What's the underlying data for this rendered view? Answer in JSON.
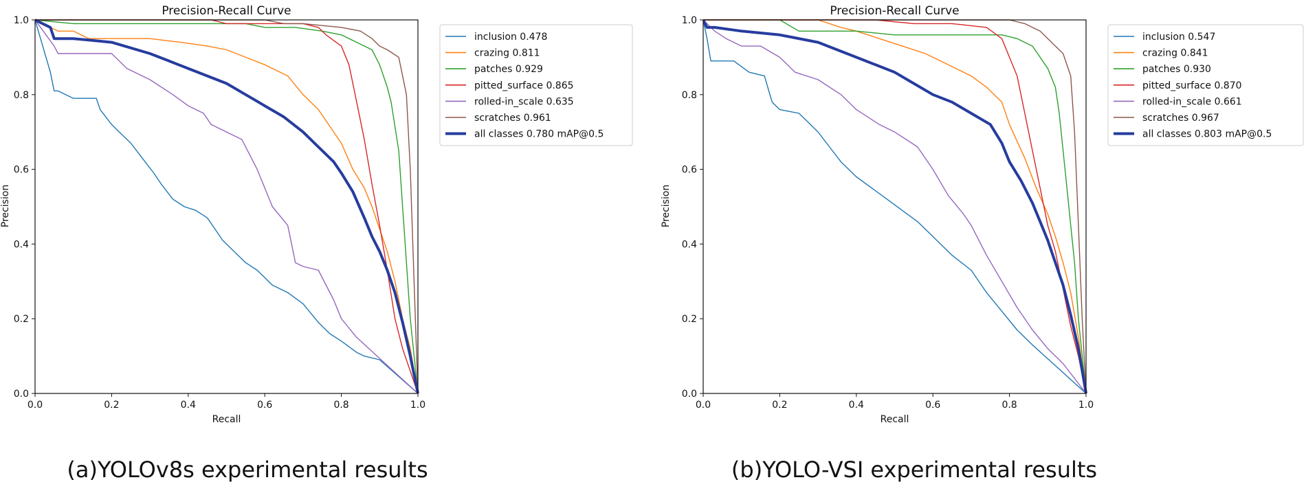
{
  "chart_data": [
    {
      "type": "line",
      "title": "Precision-Recall Curve",
      "xlabel": "Recall",
      "ylabel": "Precision",
      "xlim": [
        0,
        1
      ],
      "ylim": [
        0,
        1
      ],
      "xticks": [
        "0.0",
        "0.2",
        "0.4",
        "0.6",
        "0.8",
        "1.0"
      ],
      "yticks": [
        "0.0",
        "0.2",
        "0.4",
        "0.6",
        "0.8",
        "1.0"
      ],
      "grid": false,
      "legend_position": "right",
      "caption": "(a)YOLOv8s experimental results",
      "series": [
        {
          "name": "inclusion",
          "value": "0.478",
          "legend": "inclusion 0.478",
          "color": "#1f77b4",
          "bold": false,
          "x": [
            0,
            0.04,
            0.05,
            0.06,
            0.1,
            0.16,
            0.17,
            0.2,
            0.22,
            0.25,
            0.28,
            0.31,
            0.33,
            0.36,
            0.39,
            0.42,
            0.45,
            0.47,
            0.49,
            0.52,
            0.55,
            0.58,
            0.62,
            0.66,
            0.7,
            0.74,
            0.77,
            0.8,
            0.84,
            0.86,
            0.9,
            1.0
          ],
          "y": [
            1.0,
            0.86,
            0.81,
            0.81,
            0.79,
            0.79,
            0.76,
            0.72,
            0.7,
            0.67,
            0.63,
            0.59,
            0.56,
            0.52,
            0.5,
            0.49,
            0.47,
            0.44,
            0.41,
            0.38,
            0.35,
            0.33,
            0.29,
            0.27,
            0.24,
            0.19,
            0.16,
            0.14,
            0.11,
            0.1,
            0.09,
            0.0
          ]
        },
        {
          "name": "crazing",
          "value": "0.811",
          "legend": "crazing 0.811",
          "color": "#ff7f0e",
          "bold": false,
          "x": [
            0,
            0.04,
            0.06,
            0.1,
            0.14,
            0.2,
            0.3,
            0.38,
            0.45,
            0.5,
            0.55,
            0.6,
            0.66,
            0.7,
            0.74,
            0.76,
            0.8,
            0.83,
            0.86,
            0.88,
            0.9,
            0.92,
            0.94,
            0.96,
            0.98,
            1.0
          ],
          "y": [
            1.0,
            0.98,
            0.97,
            0.97,
            0.95,
            0.95,
            0.95,
            0.94,
            0.93,
            0.92,
            0.9,
            0.88,
            0.85,
            0.8,
            0.76,
            0.73,
            0.67,
            0.6,
            0.55,
            0.5,
            0.44,
            0.38,
            0.3,
            0.2,
            0.12,
            0.0
          ]
        },
        {
          "name": "patches",
          "value": "0.929",
          "legend": "patches 0.929",
          "color": "#2ca02c",
          "bold": false,
          "x": [
            0,
            0.1,
            0.2,
            0.4,
            0.55,
            0.6,
            0.68,
            0.75,
            0.8,
            0.84,
            0.88,
            0.9,
            0.92,
            0.93,
            0.95,
            0.96,
            0.97,
            0.98,
            1.0
          ],
          "y": [
            1.0,
            0.99,
            0.99,
            0.99,
            0.99,
            0.98,
            0.98,
            0.97,
            0.96,
            0.94,
            0.92,
            0.88,
            0.82,
            0.78,
            0.65,
            0.5,
            0.35,
            0.2,
            0.0
          ]
        },
        {
          "name": "pitted_surface",
          "value": "0.865",
          "legend": "pitted_surface 0.865",
          "color": "#d62728",
          "bold": false,
          "x": [
            0,
            0.2,
            0.4,
            0.46,
            0.5,
            0.7,
            0.74,
            0.76,
            0.8,
            0.82,
            0.84,
            0.86,
            0.88,
            0.9,
            0.92,
            0.94,
            0.96,
            1.0
          ],
          "y": [
            1.0,
            1.0,
            1.0,
            1.0,
            0.99,
            0.99,
            0.98,
            0.96,
            0.93,
            0.88,
            0.78,
            0.68,
            0.56,
            0.45,
            0.33,
            0.2,
            0.12,
            0.0
          ]
        },
        {
          "name": "rolled-in_scale",
          "value": "0.635",
          "legend": "rolled-in_scale 0.635",
          "color": "#9467bd",
          "bold": false,
          "x": [
            0,
            0.05,
            0.06,
            0.1,
            0.2,
            0.24,
            0.3,
            0.36,
            0.4,
            0.44,
            0.46,
            0.5,
            0.54,
            0.58,
            0.62,
            0.66,
            0.68,
            0.7,
            0.74,
            0.78,
            0.8,
            0.84,
            1.0
          ],
          "y": [
            1.0,
            0.93,
            0.91,
            0.91,
            0.91,
            0.87,
            0.84,
            0.8,
            0.77,
            0.75,
            0.72,
            0.7,
            0.68,
            0.6,
            0.5,
            0.45,
            0.35,
            0.34,
            0.33,
            0.25,
            0.2,
            0.15,
            0.0
          ]
        },
        {
          "name": "scratches",
          "value": "0.961",
          "legend": "scratches 0.961",
          "color": "#8c564b",
          "bold": false,
          "x": [
            0,
            0.5,
            0.6,
            0.65,
            0.7,
            0.8,
            0.85,
            0.88,
            0.9,
            0.92,
            0.95,
            0.97,
            0.98,
            0.99,
            1.0
          ],
          "y": [
            1.0,
            1.0,
            1.0,
            0.99,
            0.99,
            0.98,
            0.97,
            0.95,
            0.93,
            0.92,
            0.9,
            0.8,
            0.6,
            0.3,
            0.0
          ]
        },
        {
          "name": "all classes",
          "value": "0.780 mAP@0.5",
          "legend": "all classes 0.780 mAP@0.5",
          "color": "#263c9e",
          "bold": true,
          "x": [
            0,
            0.04,
            0.05,
            0.1,
            0.2,
            0.3,
            0.35,
            0.4,
            0.45,
            0.5,
            0.55,
            0.6,
            0.65,
            0.7,
            0.74,
            0.78,
            0.8,
            0.83,
            0.86,
            0.88,
            0.9,
            0.92,
            0.94,
            0.96,
            0.98,
            1.0
          ],
          "y": [
            1.0,
            0.98,
            0.95,
            0.95,
            0.94,
            0.91,
            0.89,
            0.87,
            0.85,
            0.83,
            0.8,
            0.77,
            0.74,
            0.7,
            0.66,
            0.62,
            0.59,
            0.54,
            0.47,
            0.42,
            0.38,
            0.33,
            0.27,
            0.19,
            0.1,
            0.0
          ]
        }
      ]
    },
    {
      "type": "line",
      "title": "Precision-Recall Curve",
      "xlabel": "Recall",
      "ylabel": "Precision",
      "xlim": [
        0,
        1
      ],
      "ylim": [
        0,
        1
      ],
      "xticks": [
        "0.0",
        "0.2",
        "0.4",
        "0.6",
        "0.8",
        "1.0"
      ],
      "yticks": [
        "0.0",
        "0.2",
        "0.4",
        "0.6",
        "0.8",
        "1.0"
      ],
      "grid": false,
      "legend_position": "right",
      "caption": "(b)YOLO-VSI experimental results",
      "series": [
        {
          "name": "inclusion",
          "value": "0.547",
          "legend": "inclusion 0.547",
          "color": "#1f77b4",
          "bold": false,
          "x": [
            0,
            0.01,
            0.02,
            0.08,
            0.12,
            0.16,
            0.18,
            0.2,
            0.25,
            0.28,
            0.3,
            0.33,
            0.36,
            0.4,
            0.44,
            0.48,
            0.52,
            0.56,
            0.6,
            0.65,
            0.7,
            0.74,
            0.78,
            0.82,
            0.86,
            1.0
          ],
          "y": [
            1.0,
            0.95,
            0.89,
            0.89,
            0.86,
            0.85,
            0.78,
            0.76,
            0.75,
            0.72,
            0.7,
            0.66,
            0.62,
            0.58,
            0.55,
            0.52,
            0.49,
            0.46,
            0.42,
            0.37,
            0.33,
            0.27,
            0.22,
            0.17,
            0.13,
            0.0
          ]
        },
        {
          "name": "crazing",
          "value": "0.841",
          "legend": "crazing 0.841",
          "color": "#ff7f0e",
          "bold": false,
          "x": [
            0,
            0.2,
            0.3,
            0.36,
            0.4,
            0.46,
            0.52,
            0.58,
            0.62,
            0.66,
            0.7,
            0.74,
            0.78,
            0.8,
            0.84,
            0.87,
            0.9,
            0.92,
            0.94,
            0.96,
            0.98,
            1.0
          ],
          "y": [
            1.0,
            1.0,
            1.0,
            0.98,
            0.97,
            0.95,
            0.93,
            0.91,
            0.89,
            0.87,
            0.85,
            0.82,
            0.78,
            0.72,
            0.63,
            0.55,
            0.48,
            0.42,
            0.35,
            0.27,
            0.15,
            0.0
          ]
        },
        {
          "name": "patches",
          "value": "0.930",
          "legend": "patches 0.930",
          "color": "#2ca02c",
          "bold": false,
          "x": [
            0,
            0.2,
            0.25,
            0.4,
            0.5,
            0.6,
            0.7,
            0.78,
            0.82,
            0.86,
            0.88,
            0.9,
            0.92,
            0.93,
            0.94,
            0.95,
            0.96,
            0.97,
            0.98,
            1.0
          ],
          "y": [
            1.0,
            1.0,
            0.97,
            0.97,
            0.96,
            0.96,
            0.96,
            0.96,
            0.95,
            0.93,
            0.9,
            0.87,
            0.82,
            0.75,
            0.65,
            0.55,
            0.45,
            0.35,
            0.2,
            0.0
          ]
        },
        {
          "name": "pitted_surface",
          "value": "0.870",
          "legend": "pitted_surface 0.870",
          "color": "#d62728",
          "bold": false,
          "x": [
            0,
            0.3,
            0.45,
            0.55,
            0.65,
            0.74,
            0.78,
            0.8,
            0.82,
            0.84,
            0.86,
            0.88,
            0.9,
            0.92,
            0.94,
            0.96,
            0.98,
            1.0
          ],
          "y": [
            1.0,
            1.0,
            1.0,
            0.99,
            0.99,
            0.98,
            0.95,
            0.9,
            0.85,
            0.75,
            0.65,
            0.55,
            0.45,
            0.38,
            0.28,
            0.18,
            0.1,
            0.0
          ]
        },
        {
          "name": "rolled-in_scale",
          "value": "0.661",
          "legend": "rolled-in_scale 0.661",
          "color": "#9467bd",
          "bold": false,
          "x": [
            0,
            0.03,
            0.06,
            0.1,
            0.15,
            0.2,
            0.24,
            0.3,
            0.36,
            0.4,
            0.46,
            0.5,
            0.56,
            0.6,
            0.64,
            0.68,
            0.7,
            0.74,
            0.78,
            0.82,
            0.86,
            0.9,
            0.94,
            1.0
          ],
          "y": [
            1.0,
            0.97,
            0.95,
            0.93,
            0.93,
            0.9,
            0.86,
            0.84,
            0.8,
            0.76,
            0.72,
            0.7,
            0.66,
            0.6,
            0.53,
            0.48,
            0.45,
            0.37,
            0.3,
            0.23,
            0.17,
            0.12,
            0.08,
            0.0
          ]
        },
        {
          "name": "scratches",
          "value": "0.967",
          "legend": "scratches 0.967",
          "color": "#8c564b",
          "bold": false,
          "x": [
            0,
            0.5,
            0.6,
            0.7,
            0.8,
            0.84,
            0.86,
            0.88,
            0.9,
            0.92,
            0.94,
            0.96,
            0.97,
            0.98,
            0.99,
            1.0
          ],
          "y": [
            1.0,
            1.0,
            1.0,
            1.0,
            1.0,
            0.99,
            0.98,
            0.97,
            0.95,
            0.93,
            0.91,
            0.85,
            0.7,
            0.45,
            0.2,
            0.0
          ]
        },
        {
          "name": "all classes",
          "value": "0.803 mAP@0.5",
          "legend": "all classes 0.803 mAP@0.5",
          "color": "#263c9e",
          "bold": true,
          "x": [
            0,
            0.01,
            0.03,
            0.1,
            0.2,
            0.3,
            0.35,
            0.4,
            0.45,
            0.5,
            0.55,
            0.6,
            0.65,
            0.7,
            0.75,
            0.78,
            0.8,
            0.83,
            0.86,
            0.88,
            0.9,
            0.92,
            0.94,
            0.96,
            0.98,
            1.0
          ],
          "y": [
            1.0,
            0.98,
            0.98,
            0.97,
            0.96,
            0.94,
            0.92,
            0.9,
            0.88,
            0.86,
            0.83,
            0.8,
            0.78,
            0.75,
            0.72,
            0.67,
            0.62,
            0.57,
            0.51,
            0.46,
            0.41,
            0.35,
            0.29,
            0.21,
            0.12,
            0.0
          ]
        }
      ]
    }
  ]
}
